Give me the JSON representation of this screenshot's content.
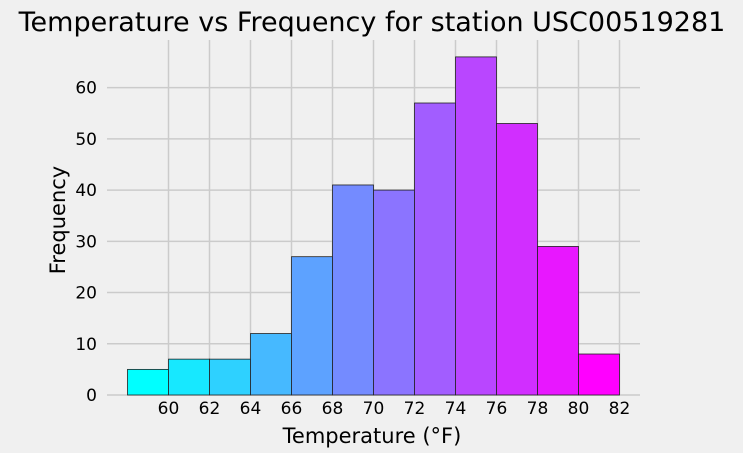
{
  "chart_data": {
    "type": "bar",
    "title": "Temperature vs Frequency for station USC00519281",
    "xlabel": "Temperature (°F)",
    "ylabel": "Frequency",
    "bins": [
      {
        "from": 58.0,
        "to": 60.0,
        "value": 5
      },
      {
        "from": 60.0,
        "to": 62.0,
        "value": 7
      },
      {
        "from": 62.0,
        "to": 64.0,
        "value": 7
      },
      {
        "from": 64.0,
        "to": 66.0,
        "value": 12
      },
      {
        "from": 66.0,
        "to": 68.0,
        "value": 27
      },
      {
        "from": 68.0,
        "to": 70.0,
        "value": 41
      },
      {
        "from": 70.0,
        "to": 72.0,
        "value": 40
      },
      {
        "from": 72.0,
        "to": 74.0,
        "value": 57
      },
      {
        "from": 74.0,
        "to": 76.0,
        "value": 66
      },
      {
        "from": 76.0,
        "to": 78.0,
        "value": 53
      },
      {
        "from": 78.0,
        "to": 80.0,
        "value": 29
      },
      {
        "from": 80.0,
        "to": 82.0,
        "value": 8
      }
    ],
    "xticks": [
      "60",
      "62",
      "64",
      "66",
      "68",
      "70",
      "72",
      "74",
      "76",
      "78",
      "80",
      "82"
    ],
    "yticks": [
      "0",
      "10",
      "20",
      "30",
      "40",
      "50",
      "60"
    ],
    "xlim": [
      57.0,
      83.0
    ],
    "ylim": [
      0,
      69.3
    ],
    "grid": true,
    "colormap": "cool",
    "bar_colors": [
      "#00ffff",
      "#17e8ff",
      "#2ed1ff",
      "#46b9ff",
      "#5da2ff",
      "#748bff",
      "#8b74ff",
      "#a25dff",
      "#b946ff",
      "#d12eff",
      "#e817ff",
      "#ff00ff"
    ],
    "background": "#f0f0f0",
    "grid_color": "#cbcbcb"
  }
}
